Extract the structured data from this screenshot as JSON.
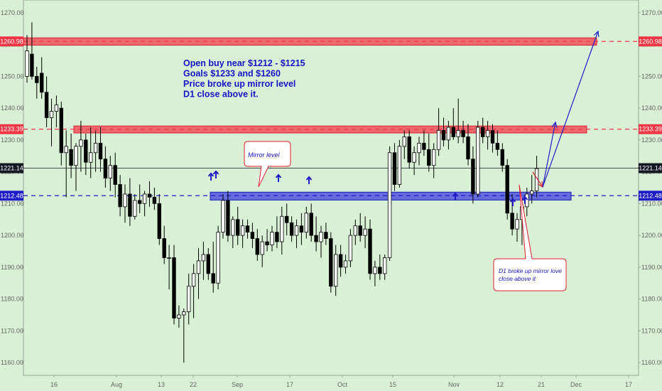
{
  "chart_data": {
    "type": "candlestick",
    "title": "",
    "y_axis": {
      "position": "both",
      "range": [
        1156,
        1274
      ],
      "ticks": [
        1160,
        1170,
        1180,
        1190,
        1200,
        1210,
        1220,
        1230,
        1240,
        1250,
        1260,
        1270
      ],
      "tick_labels": [
        "1160.00",
        "1170.00",
        "1180.00",
        "1190.00",
        "1200.00",
        "1210.00",
        "1220.00",
        "1230.00",
        "1240.00",
        "1250.00",
        "1260.00",
        "1270.00"
      ]
    },
    "x_axis": {
      "tick_labels": [
        "16",
        "Aug",
        "13",
        "22",
        "Sep",
        "17",
        "Oct",
        "15",
        "Nov",
        "12",
        "21",
        "Dec",
        "17"
      ]
    },
    "grid": false,
    "levels": [
      {
        "name": "resistance-1260",
        "value": 1260.98,
        "label": "1260.98",
        "color": "#f23645",
        "style": "dashed",
        "zone": [
          1259.8,
          1262.1
        ]
      },
      {
        "name": "resistance-1233",
        "value": 1233.39,
        "label": "1233.39",
        "color": "#f23645",
        "style": "dashed",
        "zone": [
          1232.2,
          1234.4
        ]
      },
      {
        "name": "last-price",
        "value": 1221.14,
        "label": "1221.14",
        "color": "#131722",
        "style": "solid"
      },
      {
        "name": "mirror-level",
        "value": 1212.48,
        "label": "1212.48",
        "color": "#1e1ec8",
        "style": "dashed",
        "zone": [
          1211.1,
          1213.6
        ]
      }
    ],
    "annotations": {
      "main_note": [
        "Open buy near $1212 - $1215",
        "Goals $1233 and  $1260",
        "Price broke up mirror level",
        "D1 close above it."
      ],
      "mirror_callout": "Mirror level",
      "d1_callout": [
        "D1 broke up mirror love",
        "close above it"
      ]
    },
    "candles": [
      {
        "t": 0,
        "o": 1250,
        "h": 1263,
        "l": 1248,
        "c": 1258
      },
      {
        "t": 1,
        "o": 1257,
        "h": 1267,
        "l": 1249,
        "c": 1250
      },
      {
        "t": 2,
        "o": 1250,
        "h": 1253,
        "l": 1243,
        "c": 1248
      },
      {
        "t": 3,
        "o": 1251,
        "h": 1256,
        "l": 1243,
        "c": 1245
      },
      {
        "t": 4,
        "o": 1245,
        "h": 1250,
        "l": 1234,
        "c": 1237
      },
      {
        "t": 5,
        "o": 1237,
        "h": 1243,
        "l": 1228,
        "c": 1239
      },
      {
        "t": 6,
        "o": 1239,
        "h": 1244,
        "l": 1234,
        "c": 1241
      },
      {
        "t": 7,
        "o": 1240,
        "h": 1242,
        "l": 1222,
        "c": 1226
      },
      {
        "t": 8,
        "o": 1226,
        "h": 1233,
        "l": 1212,
        "c": 1228
      },
      {
        "t": 9,
        "o": 1227,
        "h": 1232,
        "l": 1218,
        "c": 1222
      },
      {
        "t": 10,
        "o": 1222,
        "h": 1229,
        "l": 1214,
        "c": 1228
      },
      {
        "t": 11,
        "o": 1228,
        "h": 1236,
        "l": 1220,
        "c": 1230
      },
      {
        "t": 12,
        "o": 1230,
        "h": 1232,
        "l": 1219,
        "c": 1223
      },
      {
        "t": 13,
        "o": 1223,
        "h": 1234,
        "l": 1218,
        "c": 1226
      },
      {
        "t": 14,
        "o": 1226,
        "h": 1233,
        "l": 1220,
        "c": 1229
      },
      {
        "t": 15,
        "o": 1229,
        "h": 1234,
        "l": 1220,
        "c": 1224
      },
      {
        "t": 16,
        "o": 1224,
        "h": 1228,
        "l": 1215,
        "c": 1218
      },
      {
        "t": 17,
        "o": 1218,
        "h": 1225,
        "l": 1214,
        "c": 1222
      },
      {
        "t": 18,
        "o": 1222,
        "h": 1226,
        "l": 1212,
        "c": 1216
      },
      {
        "t": 19,
        "o": 1216,
        "h": 1219,
        "l": 1206,
        "c": 1209
      },
      {
        "t": 20,
        "o": 1209,
        "h": 1216,
        "l": 1204,
        "c": 1213
      },
      {
        "t": 21,
        "o": 1213,
        "h": 1218,
        "l": 1203,
        "c": 1206
      },
      {
        "t": 22,
        "o": 1206,
        "h": 1213,
        "l": 1205,
        "c": 1211
      },
      {
        "t": 23,
        "o": 1211,
        "h": 1216,
        "l": 1207,
        "c": 1210
      },
      {
        "t": 24,
        "o": 1210,
        "h": 1214,
        "l": 1206,
        "c": 1213
      },
      {
        "t": 25,
        "o": 1213,
        "h": 1217,
        "l": 1209,
        "c": 1212
      },
      {
        "t": 26,
        "o": 1212,
        "h": 1215,
        "l": 1208,
        "c": 1210
      },
      {
        "t": 27,
        "o": 1210,
        "h": 1213,
        "l": 1197,
        "c": 1199
      },
      {
        "t": 28,
        "o": 1199,
        "h": 1203,
        "l": 1191,
        "c": 1193
      },
      {
        "t": 29,
        "o": 1193,
        "h": 1197,
        "l": 1183,
        "c": 1193
      },
      {
        "t": 30,
        "o": 1193,
        "h": 1197,
        "l": 1172,
        "c": 1174
      },
      {
        "t": 31,
        "o": 1174,
        "h": 1178,
        "l": 1171,
        "c": 1175
      },
      {
        "t": 32,
        "o": 1175,
        "h": 1177,
        "l": 1160,
        "c": 1176
      },
      {
        "t": 33,
        "o": 1176,
        "h": 1188,
        "l": 1172,
        "c": 1184
      },
      {
        "t": 34,
        "o": 1184,
        "h": 1191,
        "l": 1174,
        "c": 1188
      },
      {
        "t": 35,
        "o": 1188,
        "h": 1196,
        "l": 1180,
        "c": 1192
      },
      {
        "t": 36,
        "o": 1192,
        "h": 1198,
        "l": 1186,
        "c": 1194
      },
      {
        "t": 37,
        "o": 1194,
        "h": 1196,
        "l": 1186,
        "c": 1188
      },
      {
        "t": 38,
        "o": 1188,
        "h": 1198,
        "l": 1182,
        "c": 1185
      },
      {
        "t": 39,
        "o": 1185,
        "h": 1203,
        "l": 1183,
        "c": 1201
      },
      {
        "t": 40,
        "o": 1201,
        "h": 1213,
        "l": 1199,
        "c": 1211
      },
      {
        "t": 41,
        "o": 1211,
        "h": 1214,
        "l": 1198,
        "c": 1200
      },
      {
        "t": 42,
        "o": 1200,
        "h": 1206,
        "l": 1196,
        "c": 1205
      },
      {
        "t": 43,
        "o": 1205,
        "h": 1209,
        "l": 1197,
        "c": 1200
      },
      {
        "t": 44,
        "o": 1200,
        "h": 1205,
        "l": 1196,
        "c": 1203
      },
      {
        "t": 45,
        "o": 1203,
        "h": 1205,
        "l": 1199,
        "c": 1201
      },
      {
        "t": 46,
        "o": 1201,
        "h": 1204,
        "l": 1196,
        "c": 1199
      },
      {
        "t": 47,
        "o": 1199,
        "h": 1202,
        "l": 1192,
        "c": 1194
      },
      {
        "t": 48,
        "o": 1194,
        "h": 1200,
        "l": 1190,
        "c": 1198
      },
      {
        "t": 49,
        "o": 1198,
        "h": 1202,
        "l": 1195,
        "c": 1197
      },
      {
        "t": 50,
        "o": 1197,
        "h": 1203,
        "l": 1195,
        "c": 1201
      },
      {
        "t": 51,
        "o": 1201,
        "h": 1206,
        "l": 1196,
        "c": 1198
      },
      {
        "t": 52,
        "o": 1198,
        "h": 1209,
        "l": 1194,
        "c": 1206
      },
      {
        "t": 53,
        "o": 1206,
        "h": 1210,
        "l": 1200,
        "c": 1204
      },
      {
        "t": 54,
        "o": 1204,
        "h": 1206,
        "l": 1198,
        "c": 1200
      },
      {
        "t": 55,
        "o": 1200,
        "h": 1205,
        "l": 1196,
        "c": 1203
      },
      {
        "t": 56,
        "o": 1203,
        "h": 1207,
        "l": 1197,
        "c": 1201
      },
      {
        "t": 57,
        "o": 1201,
        "h": 1209,
        "l": 1199,
        "c": 1207
      },
      {
        "t": 58,
        "o": 1207,
        "h": 1210,
        "l": 1198,
        "c": 1200
      },
      {
        "t": 59,
        "o": 1200,
        "h": 1206,
        "l": 1195,
        "c": 1198
      },
      {
        "t": 60,
        "o": 1198,
        "h": 1203,
        "l": 1193,
        "c": 1201
      },
      {
        "t": 61,
        "o": 1201,
        "h": 1204,
        "l": 1197,
        "c": 1199
      },
      {
        "t": 62,
        "o": 1199,
        "h": 1201,
        "l": 1182,
        "c": 1184
      },
      {
        "t": 63,
        "o": 1184,
        "h": 1197,
        "l": 1181,
        "c": 1194
      },
      {
        "t": 64,
        "o": 1194,
        "h": 1197,
        "l": 1187,
        "c": 1190
      },
      {
        "t": 65,
        "o": 1190,
        "h": 1194,
        "l": 1188,
        "c": 1192
      },
      {
        "t": 66,
        "o": 1192,
        "h": 1202,
        "l": 1190,
        "c": 1200
      },
      {
        "t": 67,
        "o": 1200,
        "h": 1205,
        "l": 1197,
        "c": 1203
      },
      {
        "t": 68,
        "o": 1203,
        "h": 1207,
        "l": 1198,
        "c": 1200
      },
      {
        "t": 69,
        "o": 1200,
        "h": 1206,
        "l": 1196,
        "c": 1202
      },
      {
        "t": 70,
        "o": 1202,
        "h": 1205,
        "l": 1186,
        "c": 1188
      },
      {
        "t": 71,
        "o": 1188,
        "h": 1192,
        "l": 1184,
        "c": 1190
      },
      {
        "t": 72,
        "o": 1190,
        "h": 1194,
        "l": 1186,
        "c": 1188
      },
      {
        "t": 73,
        "o": 1188,
        "h": 1194,
        "l": 1186,
        "c": 1193
      },
      {
        "t": 74,
        "o": 1193,
        "h": 1228,
        "l": 1192,
        "c": 1226
      },
      {
        "t": 75,
        "o": 1226,
        "h": 1229,
        "l": 1214,
        "c": 1216
      },
      {
        "t": 76,
        "o": 1216,
        "h": 1230,
        "l": 1215,
        "c": 1228
      },
      {
        "t": 77,
        "o": 1228,
        "h": 1233,
        "l": 1224,
        "c": 1231
      },
      {
        "t": 78,
        "o": 1231,
        "h": 1233,
        "l": 1221,
        "c": 1223
      },
      {
        "t": 79,
        "o": 1223,
        "h": 1228,
        "l": 1219,
        "c": 1226
      },
      {
        "t": 80,
        "o": 1226,
        "h": 1231,
        "l": 1222,
        "c": 1229
      },
      {
        "t": 81,
        "o": 1229,
        "h": 1233,
        "l": 1225,
        "c": 1227
      },
      {
        "t": 82,
        "o": 1227,
        "h": 1232,
        "l": 1220,
        "c": 1222
      },
      {
        "t": 83,
        "o": 1222,
        "h": 1229,
        "l": 1218,
        "c": 1227
      },
      {
        "t": 84,
        "o": 1227,
        "h": 1240,
        "l": 1225,
        "c": 1233
      },
      {
        "t": 85,
        "o": 1233,
        "h": 1237,
        "l": 1228,
        "c": 1230
      },
      {
        "t": 86,
        "o": 1230,
        "h": 1236,
        "l": 1227,
        "c": 1234
      },
      {
        "t": 87,
        "o": 1234,
        "h": 1240,
        "l": 1230,
        "c": 1231
      },
      {
        "t": 88,
        "o": 1231,
        "h": 1243,
        "l": 1229,
        "c": 1233
      },
      {
        "t": 89,
        "o": 1233,
        "h": 1236,
        "l": 1229,
        "c": 1231
      },
      {
        "t": 90,
        "o": 1231,
        "h": 1235,
        "l": 1222,
        "c": 1224
      },
      {
        "t": 91,
        "o": 1224,
        "h": 1228,
        "l": 1210,
        "c": 1213
      },
      {
        "t": 92,
        "o": 1213,
        "h": 1236,
        "l": 1212,
        "c": 1234
      },
      {
        "t": 93,
        "o": 1234,
        "h": 1237,
        "l": 1229,
        "c": 1231
      },
      {
        "t": 94,
        "o": 1231,
        "h": 1236,
        "l": 1227,
        "c": 1233
      },
      {
        "t": 95,
        "o": 1233,
        "h": 1235,
        "l": 1226,
        "c": 1229
      },
      {
        "t": 96,
        "o": 1229,
        "h": 1233,
        "l": 1225,
        "c": 1227
      },
      {
        "t": 97,
        "o": 1227,
        "h": 1229,
        "l": 1220,
        "c": 1222
      },
      {
        "t": 98,
        "o": 1222,
        "h": 1224,
        "l": 1205,
        "c": 1207
      },
      {
        "t": 99,
        "o": 1207,
        "h": 1213,
        "l": 1200,
        "c": 1202
      },
      {
        "t": 100,
        "o": 1202,
        "h": 1207,
        "l": 1198,
        "c": 1205
      },
      {
        "t": 101,
        "o": 1205,
        "h": 1211,
        "l": 1197,
        "c": 1209
      },
      {
        "t": 102,
        "o": 1209,
        "h": 1215,
        "l": 1206,
        "c": 1213
      },
      {
        "t": 103,
        "o": 1213,
        "h": 1219,
        "l": 1210,
        "c": 1214
      },
      {
        "t": 104,
        "o": 1214,
        "h": 1225,
        "l": 1212,
        "c": 1221
      }
    ]
  }
}
